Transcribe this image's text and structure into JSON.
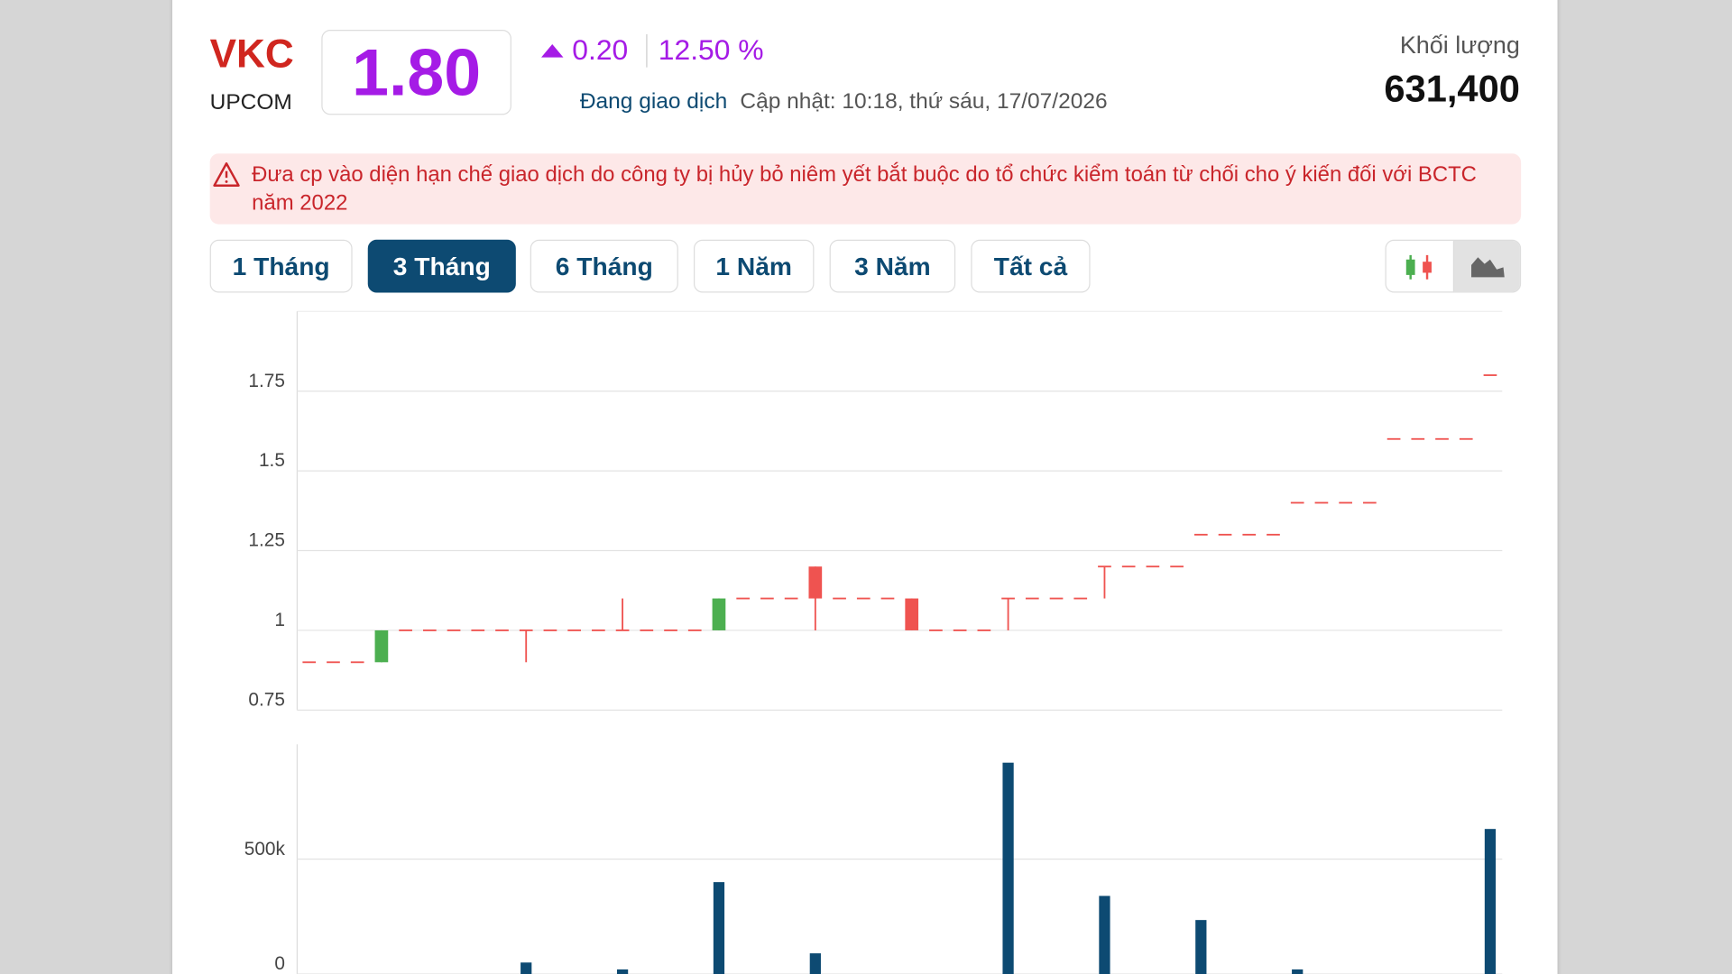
{
  "header": {
    "symbol": "VKC",
    "exchange": "UPCOM",
    "price": "1.80",
    "change": "0.20",
    "change_pct": "12.50 %",
    "status": "Đang giao dịch",
    "updated": "Cập nhật: 10:18, thứ sáu, 17/07/2026",
    "volume_label": "Khối lượng",
    "volume": "631,400"
  },
  "alert": "Đưa cp vào diện hạn chế giao dịch do công ty bị hủy bỏ niêm yết bắt buộc do tổ chức kiểm toán từ chối cho ý kiến đối với BCTC năm 2022",
  "periods": [
    "1 Tháng",
    "3 Tháng",
    "6 Tháng",
    "1 Năm",
    "3 Năm",
    "Tất cả"
  ],
  "chart_data": [
    {
      "type": "candlestick",
      "up_color": "#4caf50",
      "down_color": "#ef5350",
      "grid": true,
      "ylim": [
        0.75,
        2
      ],
      "yticks": [
        0.75,
        1,
        1.25,
        1.5,
        1.75
      ],
      "open": [
        0.9,
        0.9,
        0.9,
        0.9,
        1,
        1,
        1,
        1,
        1,
        1,
        1,
        1,
        1,
        1,
        1,
        1,
        1,
        1,
        1.1,
        1.1,
        1.1,
        1.2,
        1.1,
        1.1,
        1.1,
        1.1,
        1,
        1,
        1,
        1.1,
        1.1,
        1.1,
        1.1,
        1.2,
        1.2,
        1.2,
        1.2,
        1.3,
        1.3,
        1.3,
        1.3,
        1.4,
        1.4,
        1.4,
        1.4,
        1.6,
        1.6,
        1.6,
        1.6,
        1.8
      ],
      "high": [
        0.9,
        0.9,
        0.9,
        1,
        1,
        1,
        1,
        1,
        1,
        1,
        1,
        1,
        1,
        1.1,
        1,
        1,
        1,
        1.1,
        1.1,
        1.1,
        1.1,
        1.2,
        1.1,
        1.1,
        1.1,
        1.1,
        1,
        1,
        1,
        1.1,
        1.1,
        1.1,
        1.1,
        1.2,
        1.2,
        1.2,
        1.2,
        1.3,
        1.3,
        1.3,
        1.3,
        1.4,
        1.4,
        1.4,
        1.4,
        1.6,
        1.6,
        1.6,
        1.6,
        1.8
      ],
      "low": [
        0.9,
        0.9,
        0.9,
        0.9,
        1,
        1,
        1,
        1,
        1,
        0.9,
        1,
        1,
        1,
        1,
        1,
        1,
        1,
        1,
        1.1,
        1.1,
        1.1,
        1,
        1.1,
        1.1,
        1.1,
        1,
        1,
        1,
        1,
        1,
        1.1,
        1.1,
        1.1,
        1.1,
        1.2,
        1.2,
        1.2,
        1.3,
        1.3,
        1.3,
        1.3,
        1.4,
        1.4,
        1.4,
        1.4,
        1.6,
        1.6,
        1.6,
        1.6,
        1.8
      ],
      "close": [
        0.9,
        0.9,
        0.9,
        1,
        1,
        1,
        1,
        1,
        1,
        1,
        1,
        1,
        1,
        1,
        1,
        1,
        1,
        1.1,
        1.1,
        1.1,
        1.1,
        1.1,
        1.1,
        1.1,
        1.1,
        1,
        1,
        1,
        1,
        1.1,
        1.1,
        1.1,
        1.1,
        1.2,
        1.2,
        1.2,
        1.2,
        1.3,
        1.3,
        1.3,
        1.3,
        1.4,
        1.4,
        1.4,
        1.4,
        1.6,
        1.6,
        1.6,
        1.6,
        1.8
      ]
    },
    {
      "type": "bar",
      "color": "#0d4a72",
      "grid": true,
      "ylim": [
        0,
        1000000
      ],
      "yticks": [
        0,
        {
          "value": 500000,
          "label": "500k"
        }
      ],
      "values": [
        0,
        0,
        0,
        0,
        0,
        0,
        0,
        0,
        0,
        50000,
        0,
        0,
        0,
        20000,
        0,
        0,
        0,
        400000,
        0,
        0,
        0,
        90000,
        0,
        0,
        0,
        0,
        0,
        0,
        0,
        920000,
        0,
        0,
        0,
        340000,
        0,
        0,
        0,
        235000,
        0,
        0,
        0,
        20000,
        0,
        0,
        0,
        0,
        0,
        0,
        0,
        631400
      ]
    }
  ]
}
